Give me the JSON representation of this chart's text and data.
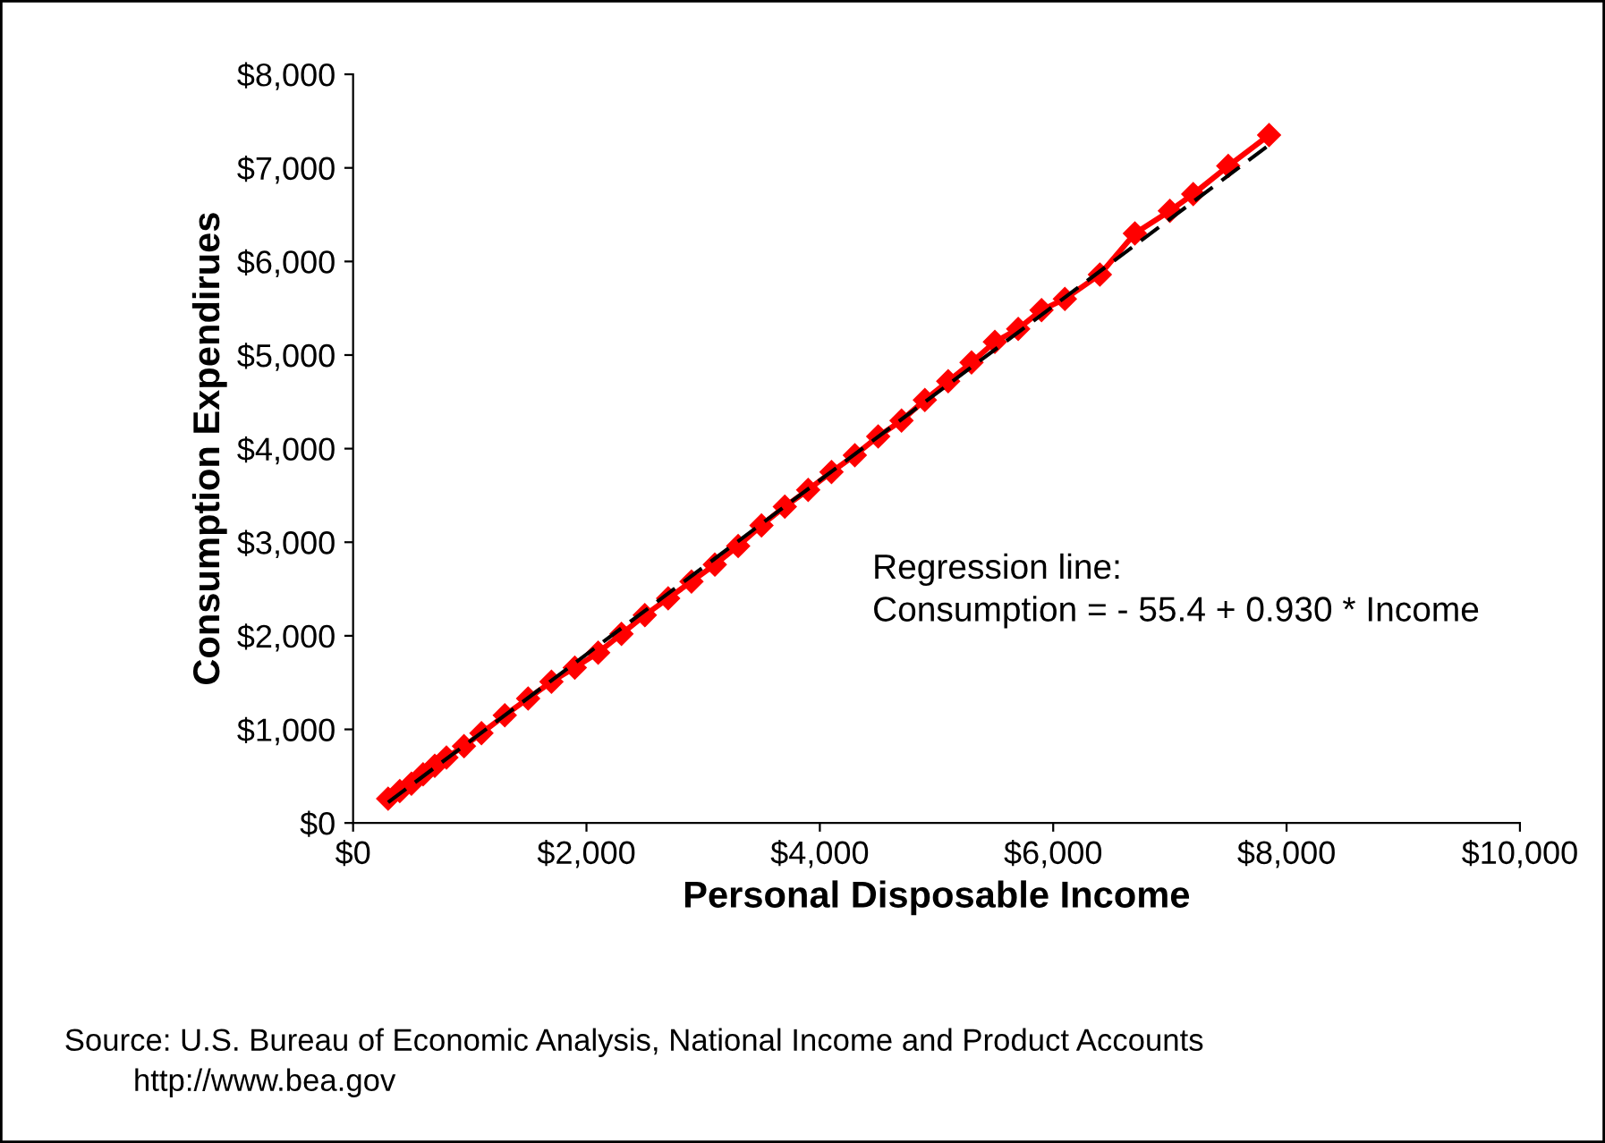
{
  "chart_data": {
    "type": "line",
    "xlabel": "Personal Disposable Income",
    "ylabel": "Consumption Expendirues",
    "xlim": [
      0,
      10000
    ],
    "ylim": [
      0,
      8000
    ],
    "xticks": [
      {
        "value": 0,
        "label": "$0"
      },
      {
        "value": 2000,
        "label": "$2,000"
      },
      {
        "value": 4000,
        "label": "$4,000"
      },
      {
        "value": 6000,
        "label": "$6,000"
      },
      {
        "value": 8000,
        "label": "$8,000"
      },
      {
        "value": 10000,
        "label": "$10,000"
      }
    ],
    "yticks": [
      {
        "value": 0,
        "label": "$0"
      },
      {
        "value": 1000,
        "label": "$1,000"
      },
      {
        "value": 2000,
        "label": "$2,000"
      },
      {
        "value": 3000,
        "label": "$3,000"
      },
      {
        "value": 4000,
        "label": "$4,000"
      },
      {
        "value": 5000,
        "label": "$5,000"
      },
      {
        "value": 6000,
        "label": "$6,000"
      },
      {
        "value": 7000,
        "label": "$7,000"
      },
      {
        "value": 8000,
        "label": "$8,000"
      }
    ],
    "grid": false,
    "legend": false,
    "series": [
      {
        "color": "#ff0000",
        "marker": "diamond",
        "line_style": "solid",
        "x": [
          300,
          400,
          500,
          600,
          700,
          800,
          950,
          1100,
          1300,
          1500,
          1700,
          1900,
          2100,
          2300,
          2500,
          2700,
          2900,
          3100,
          3300,
          3500,
          3700,
          3900,
          4100,
          4300,
          4500,
          4700,
          4900,
          5100,
          5300,
          5500,
          5700,
          5900,
          6100,
          6400,
          6700,
          7000,
          7200,
          7500,
          7850
        ],
        "values": [
          260,
          340,
          420,
          520,
          610,
          700,
          820,
          960,
          1150,
          1330,
          1510,
          1660,
          1820,
          2020,
          2220,
          2400,
          2580,
          2760,
          2960,
          3180,
          3380,
          3560,
          3750,
          3930,
          4130,
          4300,
          4520,
          4720,
          4920,
          5140,
          5280,
          5480,
          5600,
          5860,
          6300,
          6540,
          6720,
          7020,
          7350
        ]
      },
      {
        "color": "#000000",
        "marker": "none",
        "line_style": "dashed",
        "x": [
          300,
          7900
        ],
        "values": [
          220,
          7290
        ]
      }
    ],
    "annotations": [
      "Regression line:\nConsumption = - 55.4 + 0.930 * Income",
      "Source: U.S. Bureau of Economic Analysis, National Income and Product Accounts\n        http://www.bea.gov"
    ]
  }
}
